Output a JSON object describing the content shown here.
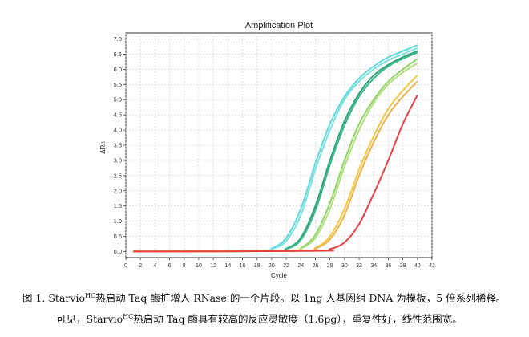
{
  "chart_data": {
    "type": "line",
    "title": "Amplification Plot",
    "xlabel": "Cycle",
    "ylabel": "ΔRn",
    "xlim": [
      0,
      42
    ],
    "ylim": [
      -0.2,
      7.2
    ],
    "x_ticks": [
      0,
      2,
      4,
      6,
      8,
      10,
      12,
      14,
      16,
      18,
      20,
      22,
      24,
      26,
      28,
      30,
      32,
      34,
      36,
      38,
      40,
      42
    ],
    "y_ticks": [
      0.0,
      0.5,
      1.0,
      1.5,
      2.0,
      2.5,
      3.0,
      3.5,
      4.0,
      4.5,
      5.0,
      5.5,
      6.0,
      6.5,
      7.0
    ],
    "grid": true,
    "series": [
      {
        "color": "#5fd9dd",
        "values": [
          [
            1,
            0
          ],
          [
            18,
            0.02
          ],
          [
            20,
            0.1
          ],
          [
            22,
            0.45
          ],
          [
            24,
            1.4
          ],
          [
            26,
            2.9
          ],
          [
            28,
            4.2
          ],
          [
            30,
            5.1
          ],
          [
            32,
            5.7
          ],
          [
            34,
            6.1
          ],
          [
            36,
            6.4
          ],
          [
            38,
            6.6
          ],
          [
            40,
            6.8
          ]
        ]
      },
      {
        "color": "#7ee0e0",
        "values": [
          [
            1,
            0
          ],
          [
            18,
            0.02
          ],
          [
            20,
            0.08
          ],
          [
            22,
            0.35
          ],
          [
            24,
            1.2
          ],
          [
            26,
            2.7
          ],
          [
            28,
            4.0
          ],
          [
            30,
            5.0
          ],
          [
            32,
            5.6
          ],
          [
            34,
            6.0
          ],
          [
            36,
            6.3
          ],
          [
            38,
            6.5
          ],
          [
            40,
            6.7
          ]
        ]
      },
      {
        "color": "#2ea57a",
        "values": [
          [
            1,
            0
          ],
          [
            20,
            0.02
          ],
          [
            22,
            0.1
          ],
          [
            24,
            0.45
          ],
          [
            26,
            1.5
          ],
          [
            28,
            3.0
          ],
          [
            30,
            4.3
          ],
          [
            32,
            5.2
          ],
          [
            34,
            5.8
          ],
          [
            36,
            6.15
          ],
          [
            38,
            6.4
          ],
          [
            40,
            6.6
          ]
        ]
      },
      {
        "color": "#3fb98a",
        "values": [
          [
            1,
            0
          ],
          [
            20,
            0.02
          ],
          [
            22,
            0.08
          ],
          [
            24,
            0.38
          ],
          [
            26,
            1.35
          ],
          [
            28,
            2.85
          ],
          [
            30,
            4.15
          ],
          [
            32,
            5.1
          ],
          [
            34,
            5.7
          ],
          [
            36,
            6.1
          ],
          [
            38,
            6.35
          ],
          [
            40,
            6.55
          ]
        ]
      },
      {
        "color": "#8fd46a",
        "values": [
          [
            1,
            0
          ],
          [
            22,
            0.02
          ],
          [
            24,
            0.12
          ],
          [
            26,
            0.55
          ],
          [
            28,
            1.6
          ],
          [
            30,
            3.0
          ],
          [
            32,
            4.2
          ],
          [
            34,
            5.0
          ],
          [
            36,
            5.6
          ],
          [
            38,
            6.0
          ],
          [
            40,
            6.35
          ]
        ]
      },
      {
        "color": "#b3e07a",
        "values": [
          [
            1,
            0
          ],
          [
            22,
            0.02
          ],
          [
            24,
            0.1
          ],
          [
            26,
            0.45
          ],
          [
            28,
            1.4
          ],
          [
            30,
            2.8
          ],
          [
            32,
            4.0
          ],
          [
            34,
            4.9
          ],
          [
            36,
            5.5
          ],
          [
            38,
            5.9
          ],
          [
            40,
            6.2
          ]
        ]
      },
      {
        "color": "#f3c93f",
        "values": [
          [
            1,
            0
          ],
          [
            24,
            0.02
          ],
          [
            26,
            0.12
          ],
          [
            28,
            0.5
          ],
          [
            30,
            1.4
          ],
          [
            32,
            2.7
          ],
          [
            34,
            3.8
          ],
          [
            36,
            4.7
          ],
          [
            38,
            5.3
          ],
          [
            40,
            5.8
          ]
        ]
      },
      {
        "color": "#f0b050",
        "values": [
          [
            1,
            0
          ],
          [
            24,
            0.02
          ],
          [
            26,
            0.1
          ],
          [
            28,
            0.4
          ],
          [
            30,
            1.2
          ],
          [
            32,
            2.5
          ],
          [
            34,
            3.6
          ],
          [
            36,
            4.5
          ],
          [
            38,
            5.1
          ],
          [
            40,
            5.6
          ]
        ]
      },
      {
        "color": "#e84040",
        "values": [
          [
            1,
            0
          ],
          [
            26,
            0.02
          ],
          [
            28,
            0.08
          ],
          [
            30,
            0.3
          ],
          [
            32,
            0.9
          ],
          [
            34,
            1.9
          ],
          [
            36,
            3.0
          ],
          [
            38,
            4.2
          ],
          [
            40,
            5.15
          ]
        ]
      }
    ]
  },
  "caption": {
    "line1_prefix": "图 1. Starvio",
    "line1_sup": "HC",
    "line1_rest": "热启动 Taq 酶扩增人 RNase 的一个片段。以 1ng 人基因组 DNA 为模板，5 倍系列稀释。",
    "line2_prefix": "可见，Starvio",
    "line2_sup": "HC",
    "line2_rest": "热启动 Taq 酶具有较高的反应灵敏度（1.6pg），重复性好，线性范围宽。"
  }
}
